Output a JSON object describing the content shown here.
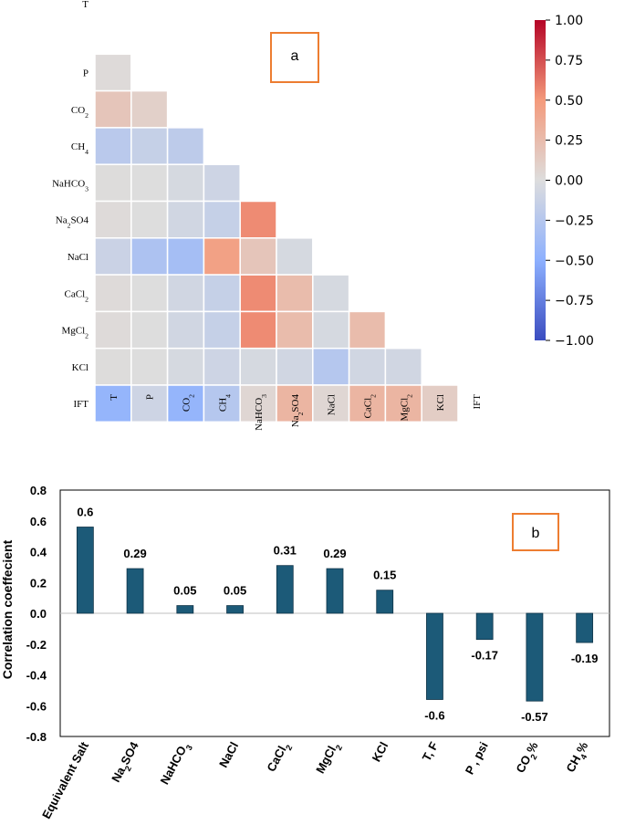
{
  "chart_data": [
    {
      "type": "heatmap",
      "panel_label": "a",
      "row_labels": [
        "T",
        "P",
        "CO2",
        "CH4",
        "NaHCO3",
        "Na2SO4",
        "NaCl",
        "CaCl2",
        "MgCl2",
        "KCl",
        "IFT"
      ],
      "col_labels": [
        "T",
        "P",
        "CO2",
        "CH4",
        "NaHCO3",
        "Na2SO4",
        "NaCl",
        "CaCl2",
        "MgCl2",
        "KCl",
        "IFT"
      ],
      "triangle": "lower",
      "values": [
        [],
        [
          0.02
        ],
        [
          0.18,
          0.1
        ],
        [
          -0.22,
          -0.15,
          -0.2
        ],
        [
          0.01,
          0.0,
          -0.05,
          -0.1
        ],
        [
          0.02,
          0.0,
          -0.08,
          -0.15,
          0.55
        ],
        [
          -0.12,
          -0.3,
          -0.35,
          0.45,
          0.18,
          -0.05
        ],
        [
          0.02,
          0.0,
          -0.08,
          -0.15,
          0.55,
          0.25,
          -0.05
        ],
        [
          0.02,
          0.0,
          -0.08,
          -0.15,
          0.55,
          0.25,
          -0.05,
          0.25
        ],
        [
          0.01,
          0.0,
          -0.05,
          -0.1,
          -0.05,
          -0.08,
          -0.25,
          -0.08,
          -0.08
        ],
        [
          -0.45,
          -0.1,
          -0.45,
          -0.25,
          0.05,
          0.3,
          0.05,
          0.3,
          0.3,
          0.12
        ]
      ],
      "colorbar": {
        "min": -1.0,
        "max": 1.0,
        "tick_labels": [
          "1.00",
          "0.75",
          "0.50",
          "0.25",
          "0.00",
          "−0.25",
          "−0.50",
          "−0.75",
          "−1.00"
        ],
        "colormap": "coolwarm"
      }
    },
    {
      "type": "bar",
      "panel_label": "b",
      "ylabel": "Correlation coeffecient",
      "ylim": [
        -0.8,
        0.8
      ],
      "ytick_labels": [
        "0.8",
        "0.6",
        "0.4",
        "0.2",
        "0.0",
        "-0.2",
        "-0.4",
        "-0.6",
        "-0.8"
      ],
      "categories": [
        "Equivalent Salt",
        "Na2SO4",
        "NaHCO3",
        "NaCl",
        "CaCl2",
        "MgCl2",
        "KCl",
        "T, F",
        "P , psi",
        "CO2%",
        "CH4%"
      ],
      "values": [
        0.56,
        0.29,
        0.05,
        0.05,
        0.31,
        0.29,
        0.15,
        -0.56,
        -0.17,
        -0.57,
        -0.19
      ],
      "data_labels": [
        "0.6",
        "0.29",
        "0.05",
        "0.05",
        "0.31",
        "0.29",
        "0.15",
        "-0.6",
        "-0.17",
        "-0.57",
        "-0.19"
      ],
      "bar_color": "#1c5a78"
    }
  ],
  "colors": {
    "panel_box": "#ed7d31",
    "axis": "#000000",
    "grid": "#ffffff"
  }
}
